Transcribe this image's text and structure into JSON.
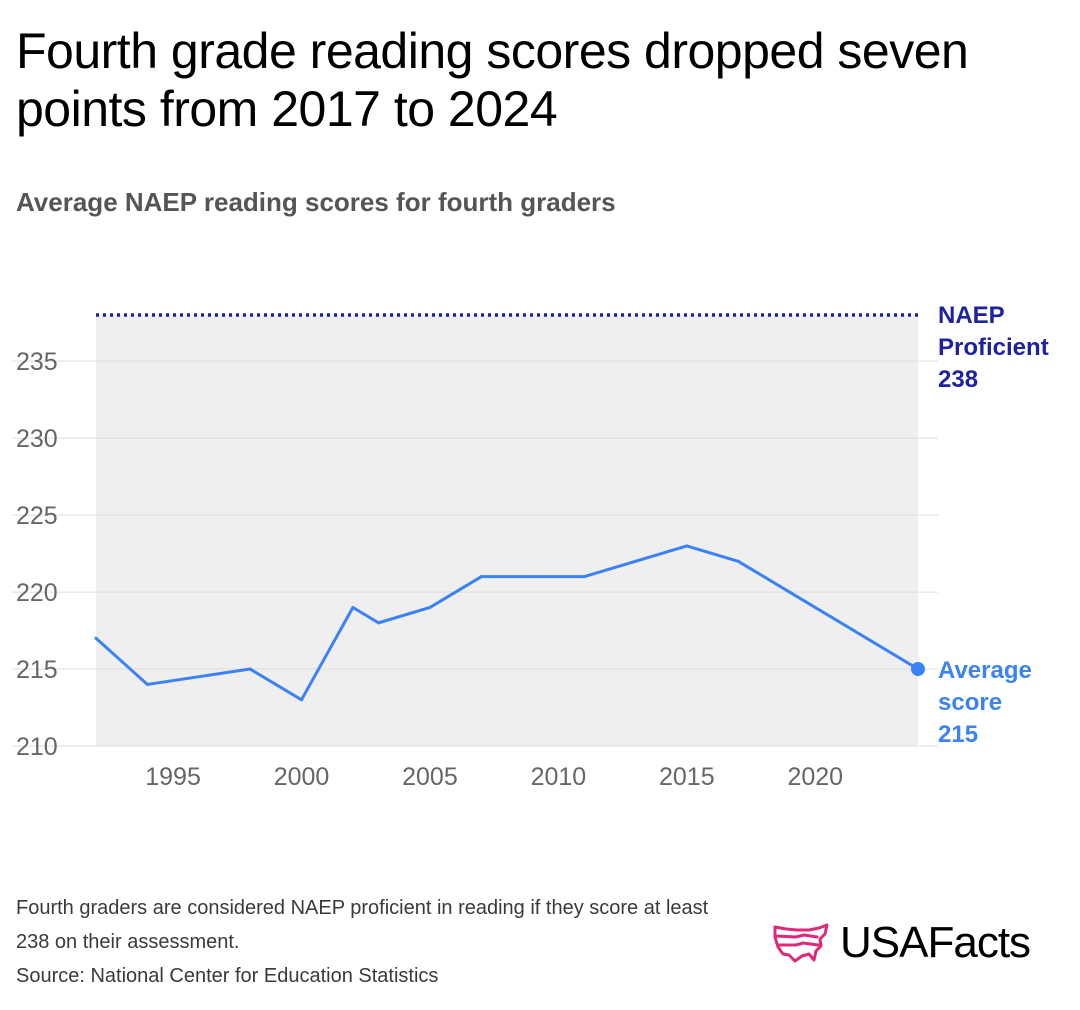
{
  "header": {
    "title": "Fourth grade reading scores dropped seven points from 2017 to 2024",
    "subtitle": "Average NAEP reading scores for fourth graders"
  },
  "colors": {
    "series": "#3B82F6",
    "proficient": "#1E22A0",
    "shade": "#EFEFEF",
    "grid": "#DDDDDD",
    "tick": "#666666",
    "logo_accent": "#E0287A"
  },
  "chart_data": {
    "type": "line",
    "title": "Average NAEP reading scores for fourth graders",
    "xlabel": "",
    "ylabel": "",
    "xlim": [
      1992,
      2024
    ],
    "ylim": [
      210,
      238
    ],
    "y_ticks": [
      210,
      215,
      220,
      225,
      230,
      235
    ],
    "x_ticks": [
      1995,
      2000,
      2005,
      2010,
      2015,
      2020
    ],
    "grid": true,
    "series": [
      {
        "name": "Average score",
        "x": [
          1992,
          1994,
          1998,
          2000,
          2002,
          2003,
          2005,
          2007,
          2009,
          2011,
          2013,
          2015,
          2017,
          2019,
          2022,
          2024
        ],
        "values": [
          217,
          214,
          215,
          213,
          219,
          218,
          219,
          221,
          221,
          221,
          222,
          223,
          222,
          220,
          217,
          215
        ],
        "end_label": [
          "Average",
          "score",
          "215"
        ]
      }
    ],
    "reference_line": {
      "name": "NAEP Proficient",
      "value": 238,
      "label": [
        "NAEP",
        "Proficient",
        "238"
      ]
    }
  },
  "footer": {
    "note": "Fourth graders are considered NAEP proficient in reading if they score at least 238 on their assessment.",
    "source": "Source: National Center for Education Statistics",
    "logo_text": "USAFacts"
  }
}
